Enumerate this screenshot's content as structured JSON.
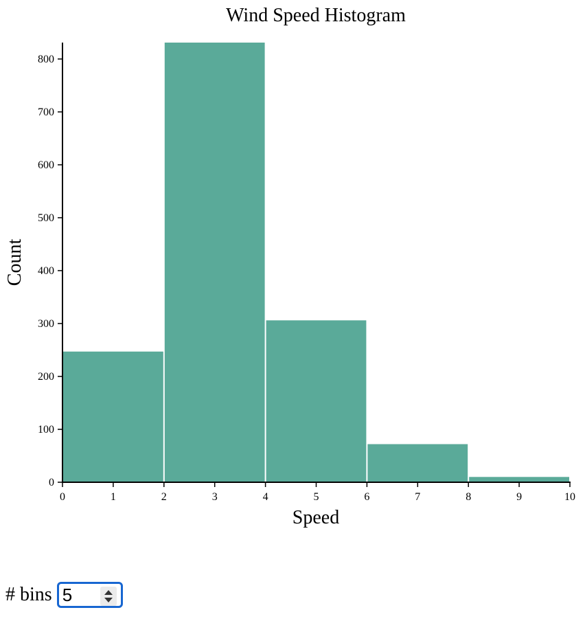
{
  "chart_data": {
    "type": "bar",
    "title": "Wind Speed Histogram",
    "xlabel": "Speed",
    "ylabel": "Count",
    "bins": [
      {
        "x0": 0,
        "x1": 2,
        "count": 247
      },
      {
        "x0": 2,
        "x1": 4,
        "count": 831
      },
      {
        "x0": 4,
        "x1": 6,
        "count": 306
      },
      {
        "x0": 6,
        "x1": 8,
        "count": 72
      },
      {
        "x0": 8,
        "x1": 10,
        "count": 10
      }
    ],
    "xlim": [
      0,
      10
    ],
    "ylim": [
      0,
      831
    ],
    "x_ticks": [
      0,
      1,
      2,
      3,
      4,
      5,
      6,
      7,
      8,
      9,
      10
    ],
    "y_ticks": [
      0,
      100,
      200,
      300,
      400,
      500,
      600,
      700,
      800
    ],
    "bar_color": "#5aaa99",
    "grid": false
  },
  "controls": {
    "bins_label": "# bins",
    "bins_value": "5"
  }
}
